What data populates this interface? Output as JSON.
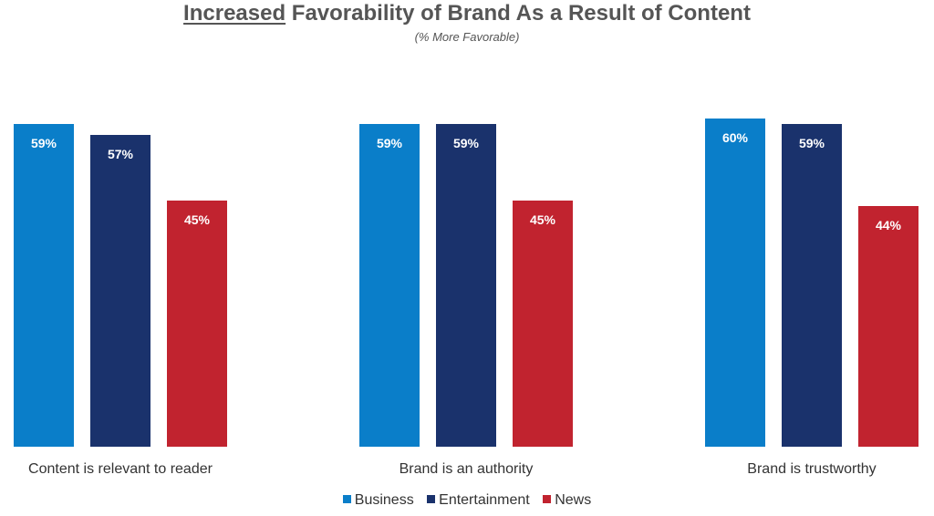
{
  "title_underlined": "Increased",
  "title_rest": " Favorability of Brand As a Result of Content",
  "subtitle": "(% More Favorable)",
  "colors": {
    "Business": "#0a7ec9",
    "Entertainment": "#1a326c",
    "News": "#c1232f"
  },
  "chart_data": {
    "type": "bar",
    "title": "Increased Favorability of Brand As a Result of Content",
    "subtitle": "(% More Favorable)",
    "categories": [
      "Content is relevant to reader",
      "Brand is an authority",
      "Brand is trustworthy"
    ],
    "series": [
      {
        "name": "Business",
        "values": [
          59,
          59,
          60
        ],
        "labels": [
          "59%",
          "59%",
          "60%"
        ]
      },
      {
        "name": "Entertainment",
        "values": [
          57,
          59,
          59
        ],
        "labels": [
          "57%",
          "59%",
          "59%"
        ]
      },
      {
        "name": "News",
        "values": [
          45,
          45,
          44
        ],
        "labels": [
          "45%",
          "45%",
          "44%"
        ]
      }
    ],
    "ylim": [
      0,
      100
    ],
    "grid": false,
    "legend": "bottom"
  }
}
